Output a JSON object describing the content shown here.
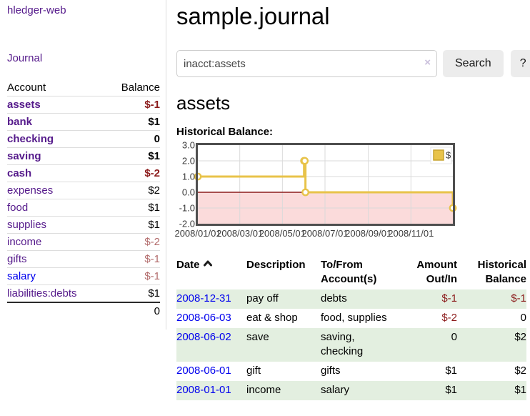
{
  "sidebar": {
    "brand": "hledger-web",
    "nav_journal": "Journal",
    "table": {
      "headers": [
        "Account",
        "Balance"
      ],
      "accounts": [
        {
          "label": "assets",
          "depth": 1,
          "bold": true,
          "link": "visited",
          "balance": "$-1",
          "balance_style": "neg-strong"
        },
        {
          "label": "bank",
          "depth": 2,
          "bold": true,
          "link": "visited",
          "balance": "$1",
          "balance_style": "plain"
        },
        {
          "label": "checking",
          "depth": 3,
          "bold": true,
          "link": "visited",
          "balance": "0",
          "balance_style": "plain"
        },
        {
          "label": "saving",
          "depth": 3,
          "bold": true,
          "link": "visited",
          "balance": "$1",
          "balance_style": "plain"
        },
        {
          "label": "cash",
          "depth": 2,
          "bold": true,
          "link": "visited",
          "balance": "$-2",
          "balance_style": "neg-strong"
        },
        {
          "label": "expenses",
          "depth": 1,
          "bold": false,
          "link": "visited",
          "balance": "$2",
          "balance_style": "plain"
        },
        {
          "label": "food",
          "depth": 2,
          "bold": false,
          "link": "visited",
          "balance": "$1",
          "balance_style": "plain"
        },
        {
          "label": "supplies",
          "depth": 2,
          "bold": false,
          "link": "visited",
          "balance": "$1",
          "balance_style": "plain"
        },
        {
          "label": "income",
          "depth": 1,
          "bold": false,
          "link": "visited",
          "balance": "$-2",
          "balance_style": "neg-dim"
        },
        {
          "label": "gifts",
          "depth": 2,
          "bold": false,
          "link": "visited",
          "balance": "$-1",
          "balance_style": "neg-dim"
        },
        {
          "label": "salary",
          "depth": 2,
          "bold": false,
          "link": "unvisited",
          "balance": "$-1",
          "balance_style": "neg-dim"
        },
        {
          "label": "liabilities:debts",
          "depth": 1,
          "bold": false,
          "link": "visited",
          "balance": "$1",
          "balance_style": "plain"
        }
      ],
      "total": "0"
    }
  },
  "header": {
    "title": "sample.journal"
  },
  "search": {
    "value": "inacct:assets",
    "clear_icon": "×",
    "button_label": "Search",
    "help_label": "?"
  },
  "account_page": {
    "title": "assets",
    "chart_label": "Historical Balance:"
  },
  "chart_data": {
    "type": "line",
    "step": true,
    "title": "Historical Balance",
    "x_range": [
      "2008-01-01",
      "2008-12-31"
    ],
    "ylim": [
      -2,
      3
    ],
    "y_ticks": [
      "3.0",
      "2.0",
      "1.0",
      "0.0",
      "-1.0",
      "-2.0"
    ],
    "x_ticks": [
      "2008/01/01",
      "2008/03/01",
      "2008/05/01",
      "2008/07/01",
      "2008/09/01",
      "2008/11/01"
    ],
    "legend": {
      "label": "$",
      "position": "top-right"
    },
    "grid": true,
    "series": [
      {
        "name": "$",
        "color": "#e8c34a",
        "points": [
          [
            "2008-01-01",
            1
          ],
          [
            "2008-06-01",
            2
          ],
          [
            "2008-06-02",
            2
          ],
          [
            "2008-06-03",
            0
          ],
          [
            "2008-12-31",
            -1
          ]
        ]
      }
    ],
    "negative_region_color": "#fbdbdb",
    "zero_line_color": "#8b1c1c"
  },
  "register": {
    "columns": {
      "date": "Date",
      "description": "Description",
      "accounts": "To/From Account(s)",
      "amount": "Amount Out/In",
      "balance": "Historical Balance"
    },
    "rows": [
      {
        "date": "2008-12-31",
        "description": "pay off",
        "accounts": "debts",
        "amount": "$-1",
        "amount_neg": true,
        "balance": "$-1",
        "balance_neg": true,
        "shaded": true
      },
      {
        "date": "2008-06-03",
        "description": "eat & shop",
        "accounts": "food, supplies",
        "amount": "$-2",
        "amount_neg": true,
        "balance": "0",
        "balance_neg": false,
        "shaded": false
      },
      {
        "date": "2008-06-02",
        "description": "save",
        "accounts": "saving, checking",
        "amount": "0",
        "amount_neg": false,
        "balance": "$2",
        "balance_neg": false,
        "shaded": true
      },
      {
        "date": "2008-06-01",
        "description": "gift",
        "accounts": "gifts",
        "amount": "$1",
        "amount_neg": false,
        "balance": "$2",
        "balance_neg": false,
        "shaded": false
      },
      {
        "date": "2008-01-01",
        "description": "income",
        "accounts": "salary",
        "amount": "$1",
        "amount_neg": false,
        "balance": "$1",
        "balance_neg": false,
        "shaded": true
      }
    ]
  },
  "colors": {
    "link_visited": "#551a8b",
    "link_unvisited": "#0000ee",
    "negative_strong": "#8b1a1a",
    "negative_dim": "#b26b6b",
    "row_shade_green": "#e3efe0",
    "chart_line": "#e8c34a",
    "chart_negative_fill": "#fbdbdb",
    "chart_zero_line": "#8b1c1c",
    "chart_border": "#4f4f4f"
  }
}
